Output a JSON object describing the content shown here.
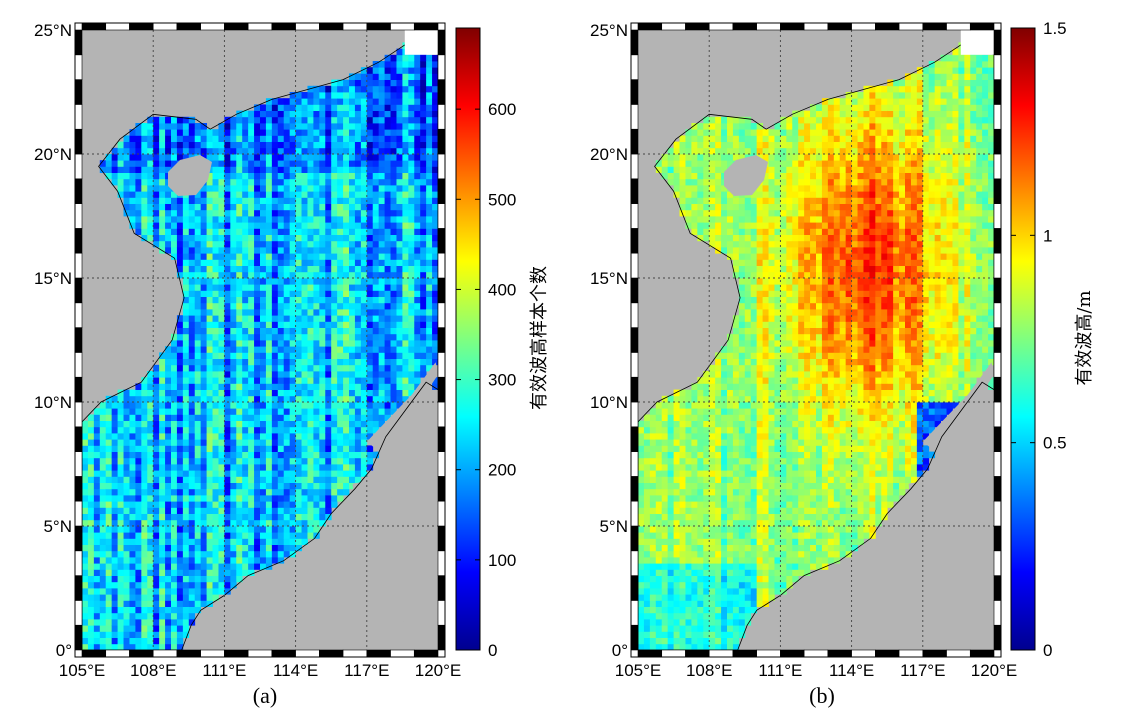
{
  "figure": {
    "panels": [
      {
        "id": "a",
        "caption": "(a)",
        "colorbar_label": "有效波高样本个数",
        "colorbar_ticks": [
          "0",
          "100",
          "200",
          "300",
          "400",
          "500",
          "600"
        ],
        "colorbar_range": [
          0,
          690
        ]
      },
      {
        "id": "b",
        "caption": "(b)",
        "colorbar_label": "有效波高/m",
        "colorbar_ticks": [
          "0",
          "0.5",
          "1",
          "1.5"
        ],
        "colorbar_range": [
          0,
          1.5
        ]
      }
    ],
    "lon_ticks": [
      "105°E",
      "108°E",
      "111°E",
      "114°E",
      "117°E",
      "120°E"
    ],
    "lat_ticks": [
      "0°",
      "5°N",
      "10°N",
      "15°N",
      "20°N",
      "25°N"
    ],
    "colors": {
      "land": "#b4b4b4",
      "frame": "#000000",
      "grid": "#555555"
    },
    "colormap": "jet"
  }
}
